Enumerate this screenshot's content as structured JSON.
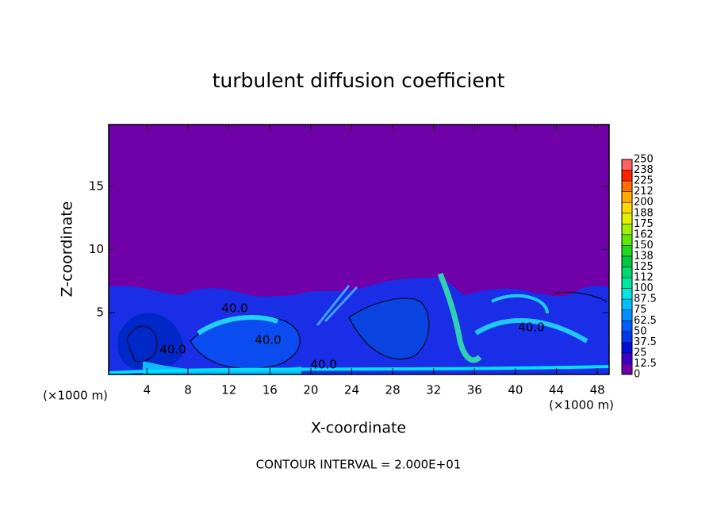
{
  "chart_data": {
    "type": "contour",
    "title": "turbulent diffusion coefficient",
    "xlabel": "X-coordinate",
    "ylabel": "Z-coordinate",
    "x_unit_label": "(×1000 m)",
    "y_unit_label": "(×1000 m)",
    "footer": "CONTOUR INTERVAL = 2.000E+01",
    "xlim": [
      0.25,
      49.15
    ],
    "ylim": [
      0.125,
      19.875
    ],
    "xticks": [
      4,
      8,
      12,
      16,
      20,
      24,
      28,
      32,
      36,
      40,
      44,
      48
    ],
    "yticks": [
      5,
      10,
      15
    ],
    "contour_labels": [
      "40.0",
      "40.0",
      "40.0",
      "40.0",
      "40.0"
    ],
    "colorbar": {
      "lim": [
        0,
        250
      ],
      "ticks": [
        0,
        12.5,
        25,
        37.5,
        50,
        62.5,
        75,
        87.5,
        100,
        {
          "value": 112.5,
          "label": "112"
        },
        125,
        {
          "value": 137.5,
          "label": "138"
        },
        150,
        {
          "value": 162.5,
          "label": "162"
        },
        175,
        {
          "value": 187.5,
          "label": "188"
        },
        200,
        {
          "value": 212.5,
          "label": "212"
        },
        225,
        {
          "value": 237.5,
          "label": "238"
        },
        250
      ],
      "colors": [
        "#7000a8",
        "#3c00c8",
        "#0010d8",
        "#0038f0",
        "#0060ff",
        "#0090ff",
        "#00c0ff",
        "#00e8e0",
        "#00e8a0",
        "#00d870",
        "#00c840",
        "#20d820",
        "#60e800",
        "#a0f000",
        "#e0f000",
        "#ffd800",
        "#ffa800",
        "#ff7000",
        "#ff2000",
        "#ff6060"
      ]
    }
  }
}
